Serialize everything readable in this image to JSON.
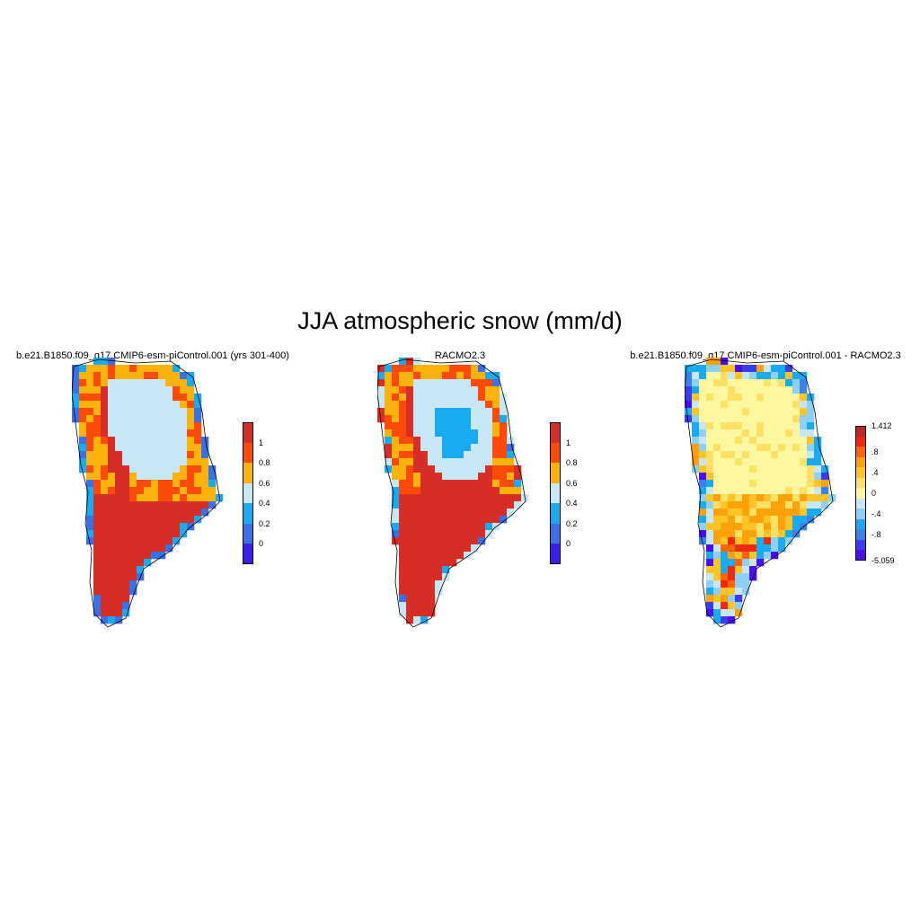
{
  "title": "JJA atmospheric snow (mm/d)",
  "panels": [
    {
      "title": "b.e21.B1850.f09_g17.CMIP6-esm-piControl.001 (yrs 301-400)",
      "colorbar": {
        "colors": [
          "#3a1ef0",
          "#3a72e6",
          "#19aaf0",
          "#c7e6f6",
          "#fbb20a",
          "#fc4a08",
          "#d62d26"
        ],
        "labels": [
          "0",
          "0.2",
          "0.4",
          "0.6",
          "0.8",
          "1"
        ]
      }
    },
    {
      "title": "RACMO2.3",
      "colorbar": {
        "colors": [
          "#3a1ef0",
          "#3a72e6",
          "#19aaf0",
          "#c7e6f6",
          "#fbb20a",
          "#fc4a08",
          "#d62d26"
        ],
        "labels": [
          "0",
          "0.2",
          "0.4",
          "0.6",
          "0.8",
          "1"
        ]
      }
    },
    {
      "title": "b.e21.B1850.f09_g17.CMIP6-esm-piControl.001 - RACMO2.3",
      "colorbar": {
        "colors": [
          "#4b0cf2",
          "#3a3cf0",
          "#3a82ec",
          "#19aaf0",
          "#8ed0f4",
          "#c7e6f6",
          "#fdf7a0",
          "#fde064",
          "#fdc428",
          "#fba10a",
          "#fc6408",
          "#f0280c",
          "#c0262a"
        ],
        "labels": [
          "-5.059",
          "-.8",
          "-.4",
          "0",
          ".4",
          ".8",
          "1.412"
        ]
      }
    }
  ]
}
